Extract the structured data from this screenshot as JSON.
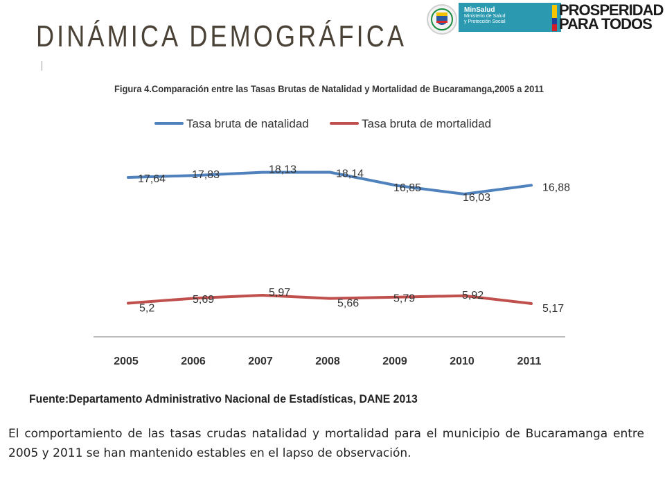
{
  "slide": {
    "title": "DINÁMICA DEMOGRÁFICA",
    "source": "Fuente:Departamento Administrativo Nacional de Estadísticas, DANE 2013",
    "body": "El comportamiento de las tasas crudas natalidad y mortalidad para el municipio de Bucaramanga entre 2005 y 2011 se han mantenido estables en el lapso de observación."
  },
  "logos": {
    "minsalud_name": "MinSalud",
    "minsalud_line1": "Ministerio de Salud",
    "minsalud_line2": "y Protección Social",
    "prosperidad_line1": "PROSPERIDAD",
    "prosperidad_line2": "PARA TODOS",
    "seal_icon": "colombia-coat-of-arms-icon"
  },
  "chart_data": {
    "type": "line",
    "title": "Figura 4.Comparación entre las  Tasas Brutas de Natalidad y Mortalidad de Bucaramanga,2005 a 2011",
    "categories": [
      "2005",
      "2006",
      "2007",
      "2008",
      "2009",
      "2010",
      "2011"
    ],
    "xlabel": "",
    "ylabel": "",
    "ylim": [
      4,
      19
    ],
    "legend_position": "top",
    "grid": false,
    "series": [
      {
        "name": "Tasa bruta de natalidad",
        "color": "#4f81bd",
        "values": [
          17.64,
          17.83,
          18.13,
          18.14,
          16.85,
          16.03,
          16.88
        ],
        "labels": [
          "17,64",
          "17,83",
          "18,13",
          "18,14",
          "16,85",
          "16,03",
          "16,88"
        ]
      },
      {
        "name": "Tasa bruta de mortalidad",
        "color": "#c0504d",
        "values": [
          5.2,
          5.69,
          5.97,
          5.66,
          5.79,
          5.92,
          5.17
        ],
        "labels": [
          "5,2",
          "5,69",
          "5,97",
          "5,66",
          "5,79",
          "5,92",
          "5,17"
        ]
      }
    ]
  }
}
